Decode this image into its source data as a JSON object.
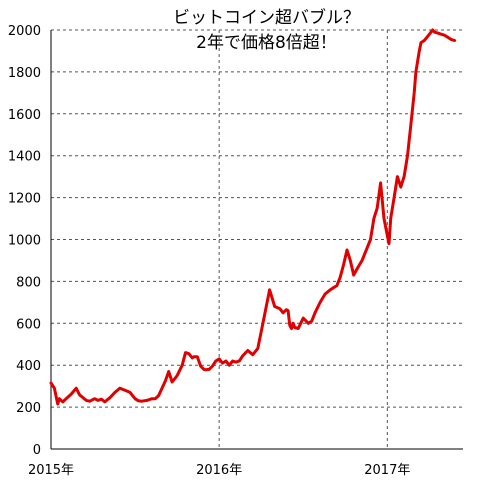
{
  "chart_data": {
    "type": "line",
    "title": "ビットコイン超バブル？",
    "subtitle": "2年で価格8倍超！",
    "xlabel": "",
    "ylabel": "",
    "ylim": [
      0,
      2000
    ],
    "yticks": [
      0,
      200,
      400,
      600,
      800,
      1000,
      1200,
      1400,
      1600,
      1800,
      2000
    ],
    "xticks": [
      {
        "label": "2015年",
        "value": 2015.0
      },
      {
        "label": "2016年",
        "value": 2016.0
      },
      {
        "label": "2017年",
        "value": 2017.0
      }
    ],
    "xlim": [
      2015.0,
      2017.45
    ],
    "grid": "dashed",
    "color": "#e00000",
    "series": [
      {
        "x": [
          2015.0,
          2015.02,
          2015.04,
          2015.05,
          2015.07,
          2015.09,
          2015.12,
          2015.15,
          2015.17,
          2015.19,
          2015.21,
          2015.23,
          2015.26,
          2015.28,
          2015.3,
          2015.32,
          2015.35,
          2015.38,
          2015.41,
          2015.44,
          2015.47,
          2015.5,
          2015.52,
          2015.54,
          2015.57,
          2015.6,
          2015.62,
          2015.64,
          2015.66,
          2015.68,
          2015.7,
          2015.72,
          2015.75,
          2015.78,
          2015.8,
          2015.82,
          2015.84,
          2015.85,
          2015.87,
          2015.89,
          2015.91,
          2015.92,
          2015.94,
          2015.96,
          2015.98,
          2016.0,
          2016.02,
          2016.04,
          2016.06,
          2016.08,
          2016.1,
          2016.12,
          2016.14,
          2016.17,
          2016.2,
          2016.23,
          2016.26,
          2016.3,
          2016.33,
          2016.36,
          2016.38,
          2016.4,
          2016.41,
          2016.42,
          2016.43,
          2016.44,
          2016.45,
          2016.47,
          2016.5,
          2016.53,
          2016.55,
          2016.57,
          2016.6,
          2016.63,
          2016.66,
          2016.68,
          2016.7,
          2016.72,
          2016.74,
          2016.76,
          2016.78,
          2016.8,
          2016.82,
          2016.85,
          2016.88,
          2016.9,
          2016.92,
          2016.94,
          2016.96,
          2016.98,
          2017.0,
          2017.01,
          2017.02,
          2017.04,
          2017.06,
          2017.08,
          2017.1,
          2017.12,
          2017.14,
          2017.16,
          2017.17,
          2017.18,
          2017.19,
          2017.2,
          2017.22,
          2017.23,
          2017.24,
          2017.25,
          2017.26,
          2017.27,
          2017.28,
          2017.3,
          2017.32,
          2017.34,
          2017.35,
          2017.36,
          2017.37,
          2017.38,
          2017.4
        ],
        "values": [
          315,
          290,
          215,
          240,
          225,
          240,
          262,
          290,
          258,
          245,
          232,
          228,
          240,
          232,
          238,
          225,
          245,
          270,
          290,
          280,
          270,
          240,
          230,
          228,
          232,
          240,
          240,
          255,
          290,
          325,
          370,
          320,
          350,
          400,
          460,
          455,
          435,
          440,
          440,
          395,
          380,
          378,
          380,
          395,
          420,
          430,
          410,
          420,
          400,
          420,
          415,
          420,
          445,
          470,
          450,
          480,
          600,
          760,
          680,
          670,
          650,
          665,
          660,
          590,
          575,
          600,
          580,
          575,
          625,
          600,
          610,
          650,
          700,
          740,
          760,
          770,
          780,
          820,
          880,
          950,
          900,
          830,
          860,
          900,
          960,
          1000,
          1100,
          1150,
          1270,
          1100,
          1020,
          980,
          1100,
          1200,
          1300,
          1250,
          1300,
          1400,
          1550,
          1700,
          1800,
          1850,
          1900,
          1940,
          1950,
          1960,
          1970,
          1980,
          1990,
          2000,
          1990,
          1985,
          1980,
          1975,
          1970,
          1965,
          1960,
          1955,
          1950
        ]
      }
    ]
  }
}
